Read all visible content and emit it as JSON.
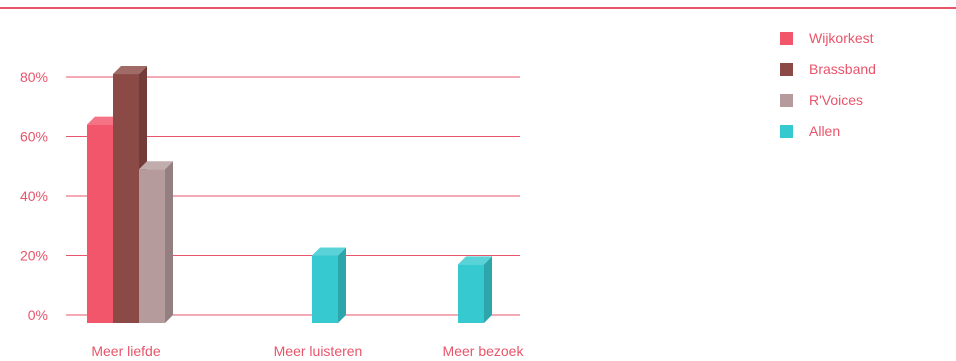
{
  "chart_data": {
    "type": "bar",
    "categories": [
      "Meer liefde",
      "Meer luisteren",
      "Meer bezoek"
    ],
    "series": [
      {
        "name": "Wijkorkest",
        "color": "#f2566a",
        "values": [
          64,
          null,
          null
        ]
      },
      {
        "name": "Brassband",
        "color": "#8b4a45",
        "values": [
          81,
          null,
          null
        ]
      },
      {
        "name": "R'Voices",
        "color": "#b59b9c",
        "values": [
          49,
          null,
          null
        ]
      },
      {
        "name": "Allen",
        "color": "#36c9d0",
        "values": [
          null,
          20,
          17
        ]
      }
    ],
    "yticks": [
      "0%",
      "20%",
      "40%",
      "60%",
      "80%"
    ],
    "ylim": [
      0,
      80
    ],
    "title": "",
    "xlabel": "",
    "ylabel": "",
    "grid": true,
    "legend_position": "top-right",
    "accent_color": "#e8546a"
  }
}
